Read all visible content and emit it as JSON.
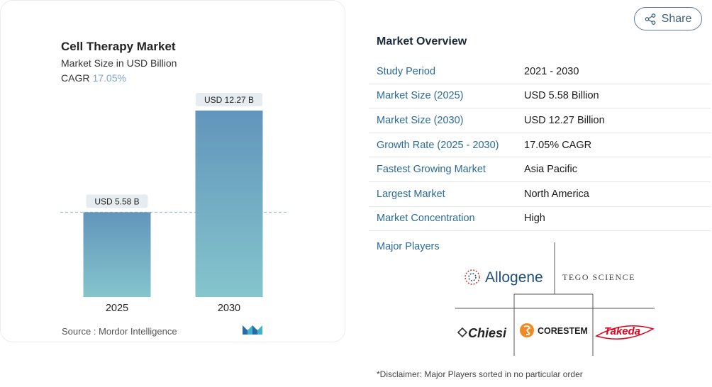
{
  "share": {
    "label": "Share",
    "icon": "share-icon"
  },
  "chart": {
    "title": "Cell Therapy Market",
    "subtitle": "Market Size in USD Billion",
    "cagr_label": "CAGR",
    "cagr_value": "17.05%",
    "source": "Source :  Mordor Intelligence",
    "logo": "mordor-intelligence-logo"
  },
  "chart_data": {
    "type": "bar",
    "categories": [
      "2025",
      "2030"
    ],
    "values": [
      5.58,
      12.27
    ],
    "data_labels": [
      "USD 5.58 B",
      "USD 12.27 B"
    ],
    "ylim": [
      0,
      12.27
    ],
    "grid": false,
    "reference_line_value": 5.58,
    "colors": {
      "bar_top": "#6295bb",
      "bar_bottom": "#84c5cc",
      "label_bg": "#e6ecef",
      "ref_line": "#8fb2cc"
    }
  },
  "overview": {
    "title": "Market Overview",
    "rows": [
      {
        "key": "Study Period",
        "value": "2021 - 2030"
      },
      {
        "key": "Market Size (2025)",
        "value": "USD 5.58 Billion"
      },
      {
        "key": "Market Size (2030)",
        "value": "USD 12.27 Billion"
      },
      {
        "key": "Growth Rate (2025 - 2030)",
        "value": "17.05% CAGR"
      },
      {
        "key": "Fastest Growing Market",
        "value": "Asia Pacific"
      },
      {
        "key": "Largest Market",
        "value": "North America"
      },
      {
        "key": "Market Concentration",
        "value": "High"
      }
    ]
  },
  "players": {
    "label": "Major Players",
    "logos": [
      {
        "name": "Allogene",
        "icon": "allogene-logo"
      },
      {
        "name": "TEGO SCIENCE",
        "icon": "tego-science-logo"
      },
      {
        "name": "Chiesi",
        "icon": "chiesi-logo"
      },
      {
        "name": "CORESTEM",
        "icon": "corestem-logo"
      },
      {
        "name": "Takeda",
        "icon": "takeda-logo"
      }
    ]
  },
  "disclaimer": "*Disclaimer: Major Players sorted in no particular order"
}
